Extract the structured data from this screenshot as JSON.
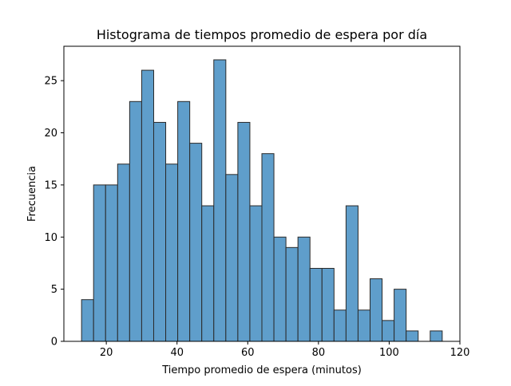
{
  "chart_data": {
    "type": "bar",
    "subtype": "histogram",
    "title": "Histograma de tiempos promedio de espera por día",
    "xlabel": "Tiempo promedio de espera (minutos)",
    "ylabel": "Frecuencia",
    "xlim": [
      8,
      120
    ],
    "ylim": [
      0,
      28.3
    ],
    "xticks": [
      20,
      40,
      60,
      80,
      100,
      120
    ],
    "yticks": [
      0,
      5,
      10,
      15,
      20,
      25
    ],
    "grid": false,
    "bar_color": "#5f9ecb",
    "edge_color": "#2a2a2a",
    "bins": [
      {
        "x0": 13.0,
        "x1": 16.4,
        "value": 4
      },
      {
        "x0": 16.4,
        "x1": 19.8,
        "value": 15
      },
      {
        "x0": 19.8,
        "x1": 23.2,
        "value": 15
      },
      {
        "x0": 23.2,
        "x1": 26.6,
        "value": 17
      },
      {
        "x0": 26.6,
        "x1": 30.0,
        "value": 23
      },
      {
        "x0": 30.0,
        "x1": 33.4,
        "value": 26
      },
      {
        "x0": 33.4,
        "x1": 36.8,
        "value": 21
      },
      {
        "x0": 36.8,
        "x1": 40.2,
        "value": 17
      },
      {
        "x0": 40.2,
        "x1": 43.6,
        "value": 23
      },
      {
        "x0": 43.6,
        "x1": 47.0,
        "value": 19
      },
      {
        "x0": 47.0,
        "x1": 50.4,
        "value": 13
      },
      {
        "x0": 50.4,
        "x1": 53.8,
        "value": 27
      },
      {
        "x0": 53.8,
        "x1": 57.2,
        "value": 16
      },
      {
        "x0": 57.2,
        "x1": 60.6,
        "value": 21
      },
      {
        "x0": 60.6,
        "x1": 64.0,
        "value": 13
      },
      {
        "x0": 64.0,
        "x1": 67.4,
        "value": 18
      },
      {
        "x0": 67.4,
        "x1": 70.8,
        "value": 10
      },
      {
        "x0": 70.8,
        "x1": 74.2,
        "value": 9
      },
      {
        "x0": 74.2,
        "x1": 77.6,
        "value": 10
      },
      {
        "x0": 77.6,
        "x1": 81.0,
        "value": 7
      },
      {
        "x0": 81.0,
        "x1": 84.4,
        "value": 7
      },
      {
        "x0": 84.4,
        "x1": 87.8,
        "value": 3
      },
      {
        "x0": 87.8,
        "x1": 91.2,
        "value": 13
      },
      {
        "x0": 91.2,
        "x1": 94.6,
        "value": 3
      },
      {
        "x0": 94.6,
        "x1": 98.0,
        "value": 6
      },
      {
        "x0": 98.0,
        "x1": 101.4,
        "value": 2
      },
      {
        "x0": 101.4,
        "x1": 104.8,
        "value": 5
      },
      {
        "x0": 104.8,
        "x1": 108.2,
        "value": 1
      },
      {
        "x0": 108.2,
        "x1": 111.6,
        "value": 0
      },
      {
        "x0": 111.6,
        "x1": 115.0,
        "value": 1
      }
    ]
  }
}
